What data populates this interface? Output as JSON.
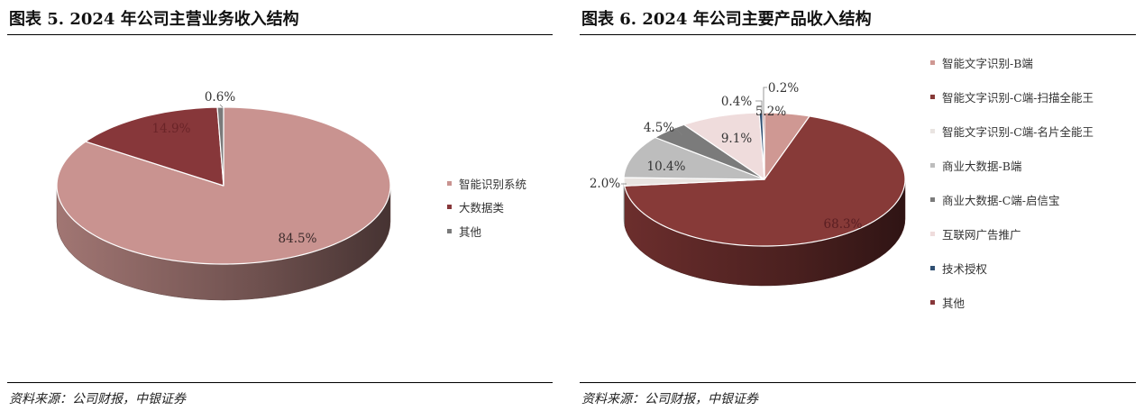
{
  "panels": [
    {
      "title": "图表 5. 2024 年公司主营业务收入结构",
      "source": "资料来源：公司财报，中银证券",
      "chart_data": {
        "type": "pie",
        "title": "图表 5. 2024 年公司主营业务收入结构",
        "categories": [
          "智能识别系统",
          "大数据类",
          "其他"
        ],
        "values": [
          84.5,
          14.9,
          0.6
        ],
        "labels": [
          "84.5%",
          "14.9%",
          "0.6%"
        ],
        "colors": [
          "#c99390",
          "#87373a",
          "#7a7a7a"
        ],
        "legend_position": "right",
        "style": "3d"
      }
    },
    {
      "title": "图表 6. 2024 年公司主要产品收入结构",
      "source": "资料来源：公司财报，中银证券",
      "chart_data": {
        "type": "pie",
        "title": "图表 6. 2024 年公司主要产品收入结构",
        "categories": [
          "智能文字识别-B端",
          "智能文字识别-C端-扫描全能王",
          "智能文字识别-C端-名片全能王",
          "商业大数据-B端",
          "商业大数据-C端-启信宝",
          "互联网广告推广",
          "技术授权",
          "其他"
        ],
        "values": [
          5.2,
          68.3,
          2.0,
          10.4,
          4.5,
          9.1,
          0.4,
          0.2
        ],
        "labels": [
          "5.2%",
          "68.3%",
          "2.0%",
          "10.4%",
          "4.5%",
          "9.1%",
          "0.4%",
          "0.2%"
        ],
        "colors": [
          "#cf9893",
          "#873a38",
          "#e9e4e1",
          "#bdbdbd",
          "#7b7b7b",
          "#efdcdc",
          "#2f4f72",
          "#87373a"
        ],
        "legend_position": "right",
        "style": "3d"
      }
    }
  ]
}
